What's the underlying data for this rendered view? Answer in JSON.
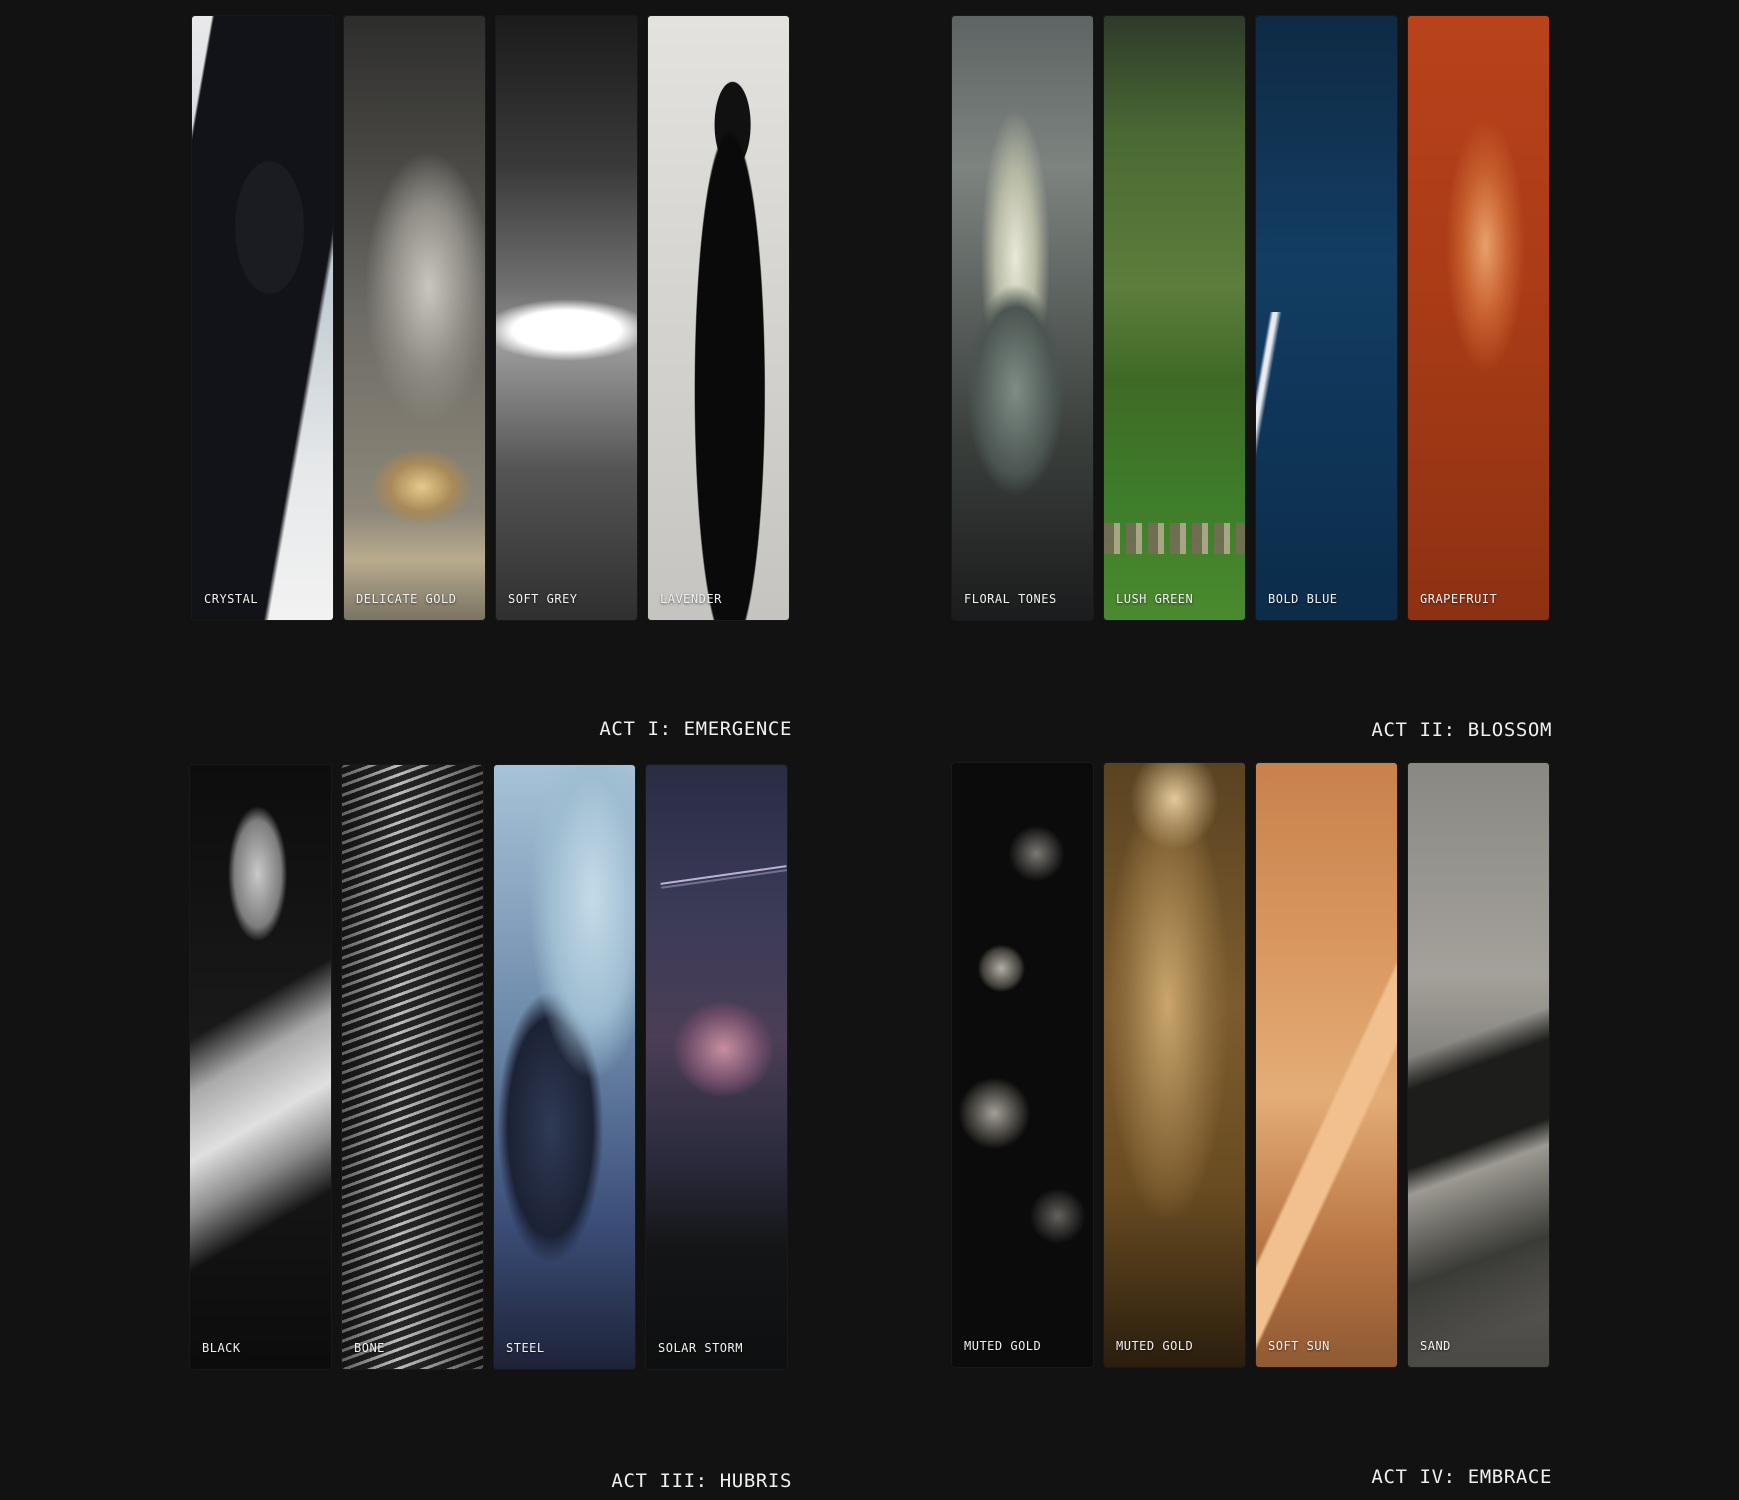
{
  "acts": [
    {
      "title": "ACT I: EMERGENCE",
      "strips": [
        "CRYSTAL",
        "DELICATE GOLD",
        "SOFT GREY",
        "LAVENDER"
      ]
    },
    {
      "title": "ACT II: BLOSSOM",
      "strips": [
        "FLORAL TONES",
        "LUSH GREEN",
        "BOLD BLUE",
        "GRAPEFRUIT"
      ]
    },
    {
      "title": "ACT III: HUBRIS",
      "strips": [
        "BLACK",
        "BONE",
        "STEEL",
        "SOLAR STORM"
      ]
    },
    {
      "title": "ACT IV: EMBRACE",
      "strips": [
        "MUTED GOLD",
        "MUTED GOLD",
        "SOFT SUN",
        "SAND"
      ]
    }
  ]
}
